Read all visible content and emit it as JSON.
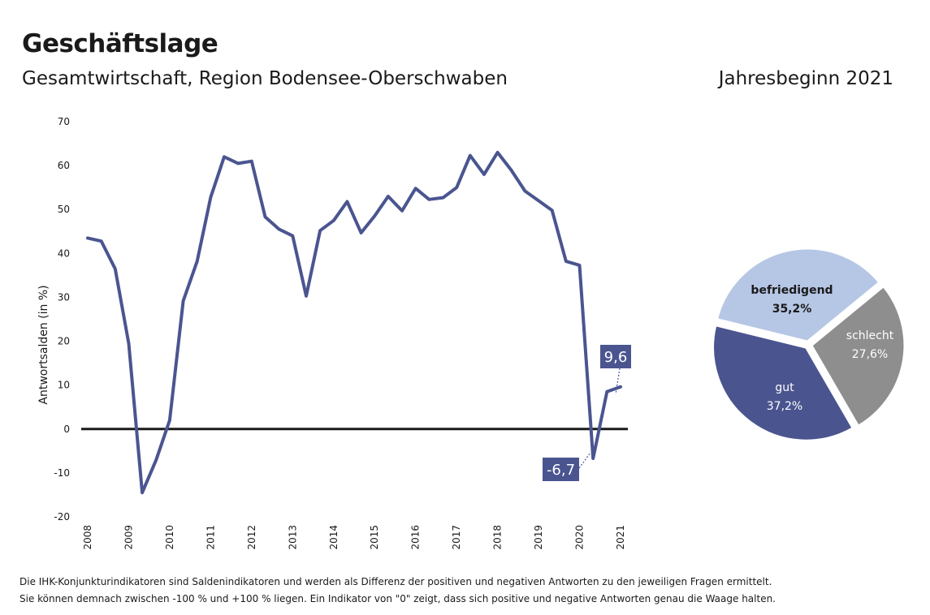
{
  "header": {
    "title": "Geschäftslage",
    "subtitle": "Gesamtwirtschaft, Region Bodensee-Oberschwaben",
    "period": "Jahresbeginn 2021"
  },
  "colors": {
    "line": "#4a5590",
    "callout": "#4a5590",
    "pie_gut": "#4a5590",
    "pie_befriedigend": "#b6c6e5",
    "pie_schlecht": "#8e8e8e",
    "zero": "#1a1a1a"
  },
  "chart_data": [
    {
      "type": "line",
      "ylabel": "Antwortsalden (in %)",
      "xlabel": "",
      "ylim": [
        -20,
        70
      ],
      "yticks": [
        -20,
        -10,
        0,
        10,
        20,
        30,
        40,
        50,
        60,
        70
      ],
      "ytick_labels": [
        "-20",
        "-10",
        "0",
        "10",
        "20",
        "30",
        "40",
        "50",
        "60",
        "70"
      ],
      "xlim": [
        2008,
        2021
      ],
      "xticks": [
        "2008",
        "2009",
        "2010",
        "2011",
        "2012",
        "2013",
        "2014",
        "2015",
        "2016",
        "2017",
        "2018",
        "2019",
        "2020",
        "2021"
      ],
      "series": [
        {
          "name": "Geschäftslage",
          "x": [
            2008.0,
            2008.33,
            2008.67,
            2009.0,
            2009.33,
            2009.67,
            2010.0,
            2010.33,
            2010.67,
            2011.0,
            2011.33,
            2011.67,
            2012.0,
            2012.33,
            2012.67,
            2013.0,
            2013.33,
            2013.67,
            2014.0,
            2014.33,
            2014.67,
            2015.0,
            2015.33,
            2015.67,
            2016.0,
            2016.33,
            2016.67,
            2017.0,
            2017.33,
            2017.67,
            2018.0,
            2018.33,
            2018.67,
            2019.0,
            2019.33,
            2019.67,
            2020.0,
            2020.33,
            2020.67,
            2021.0
          ],
          "values": [
            43.5,
            42.8,
            36.5,
            19.5,
            -14.5,
            -7.0,
            2.0,
            29.2,
            38.2,
            52.8,
            62.0,
            60.5,
            61.0,
            48.3,
            45.5,
            44.0,
            30.3,
            45.2,
            47.5,
            51.8,
            44.7,
            48.5,
            53.0,
            49.7,
            54.8,
            52.3,
            52.7,
            55.0,
            62.3,
            58.0,
            63.0,
            59.0,
            54.2,
            52.0,
            49.8,
            38.2,
            37.3,
            -6.7,
            8.5,
            9.6
          ]
        }
      ],
      "callouts": [
        {
          "label": "-6,7",
          "value": -6.7,
          "x": 2020.33
        },
        {
          "label": "9,6",
          "value": 9.6,
          "x": 2021.0
        }
      ]
    },
    {
      "type": "pie",
      "slices": [
        {
          "name": "befriedigend",
          "value": 35.2,
          "label": "35,2%"
        },
        {
          "name": "schlecht",
          "value": 27.6,
          "label": "27,6%"
        },
        {
          "name": "gut",
          "value": 37.2,
          "label": "37,2%"
        }
      ]
    }
  ],
  "footnote": {
    "line1": "Die IHK-Konjunkturindikatoren sind Saldenindikatoren und werden als Differenz der positiven und negativen Antworten zu den jeweiligen Fragen ermittelt.",
    "line2": "Sie können demnach zwischen -100 % und +100 % liegen. Ein Indikator von \"0\" zeigt, dass sich positive und negative Antworten genau die Waage halten."
  }
}
